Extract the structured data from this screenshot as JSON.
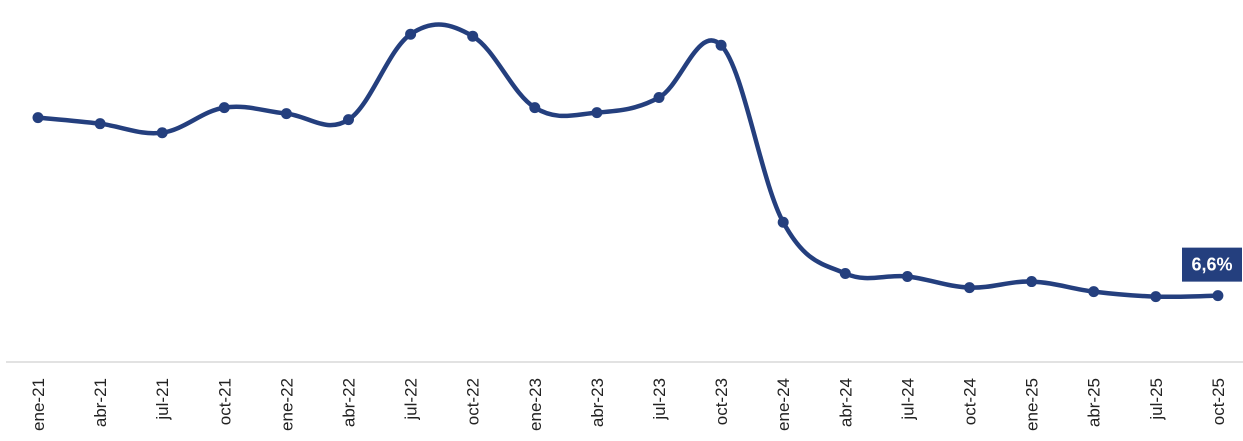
{
  "chart_data": {
    "type": "line",
    "categories": [
      "ene-21",
      "abr-21",
      "jul-21",
      "oct-21",
      "ene-22",
      "abr-22",
      "jul-22",
      "oct-22",
      "ene-23",
      "abr-23",
      "jul-23",
      "oct-23",
      "ene-24",
      "abr-24",
      "jul-24",
      "oct-24",
      "ene-25",
      "abr-25",
      "jul-25",
      "oct-25"
    ],
    "series": [
      {
        "values": [
          24.3,
          23.7,
          22.8,
          25.3,
          24.7,
          24.1,
          32.6,
          32.4,
          25.3,
          24.8,
          26.3,
          31.5,
          13.9,
          8.8,
          8.5,
          7.4,
          8.0,
          7.0,
          6.5,
          6.6
        ]
      }
    ],
    "end_label": "6,6%",
    "ylim": [
      0,
      36
    ],
    "grid": false,
    "legend": "none",
    "xlabel": "",
    "ylabel": "",
    "title": "",
    "colors": {
      "line": "#243F7E",
      "label_bg": "#243F7E",
      "axis": "#d9d9d9",
      "tick_text": "#222222"
    }
  }
}
